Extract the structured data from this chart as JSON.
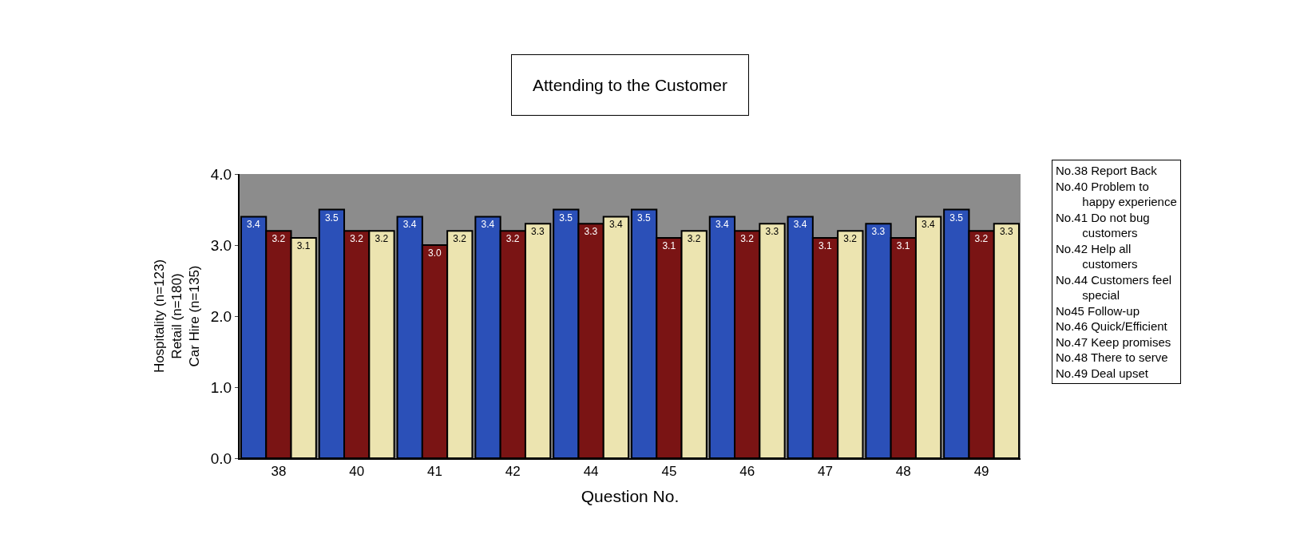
{
  "chart_data": {
    "type": "bar",
    "title": "Attending to the Customer",
    "xlabel": "Question No.",
    "ylabel": "Hospitality (n=123)\nRetail (n=180)\nCar Hire (n=135)",
    "categories": [
      "38",
      "40",
      "41",
      "42",
      "44",
      "45",
      "46",
      "47",
      "48",
      "49"
    ],
    "series": [
      {
        "color": "#2b50b8",
        "values": [
          3.4,
          3.5,
          3.4,
          3.4,
          3.5,
          3.5,
          3.4,
          3.4,
          3.3,
          3.5
        ],
        "value_labels": [
          "3.4",
          "3.5",
          "3.4",
          "3.4",
          "3.5",
          "3.5",
          "3.4",
          "3.4",
          "3.3",
          "3.5"
        ]
      },
      {
        "color": "#7a1414",
        "values": [
          3.2,
          3.2,
          3.0,
          3.2,
          3.3,
          3.1,
          3.2,
          3.1,
          3.1,
          3.2
        ],
        "value_labels": [
          "3.2",
          "3.2",
          "3.0",
          "3.2",
          "3.3",
          "3.1",
          "3.2",
          "3.1",
          "3.1",
          "3.2"
        ]
      },
      {
        "color": "#ece4b0",
        "values": [
          3.1,
          3.2,
          3.2,
          3.3,
          3.4,
          3.2,
          3.3,
          3.2,
          3.4,
          3.3
        ],
        "value_labels": [
          "3.1",
          "3.2",
          "3.2",
          "3.3",
          "3.4",
          "3.2",
          "3.3",
          "3.2",
          "3.4",
          "3.3"
        ]
      }
    ],
    "ylim": [
      0,
      4
    ],
    "yticks": [
      {
        "value": 0,
        "label": "0.0"
      },
      {
        "value": 1,
        "label": "1.0"
      },
      {
        "value": 2,
        "label": "2.0"
      },
      {
        "value": 3,
        "label": "3.0"
      },
      {
        "value": 4,
        "label": "4.0"
      }
    ],
    "grid": false,
    "legend": false,
    "annotations": [
      "No.38 Report Back\nNo.40 Problem to\n        happy experience\nNo.41 Do not bug\n        customers\nNo.42 Help all\n        customers\nNo.44 Customers feel\n        special\nNo45 Follow-up\nNo.46 Quick/Efficient\nNo.47 Keep promises\nNo.48 There to serve\nNo.49 Deal upset"
    ]
  }
}
